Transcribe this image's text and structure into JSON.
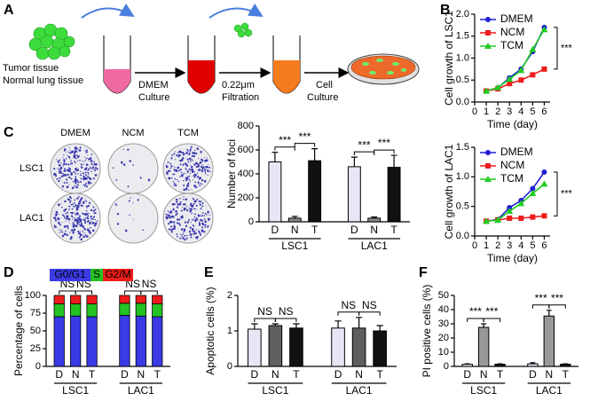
{
  "panel_labels": [
    "A",
    "B",
    "C",
    "D",
    "E",
    "F"
  ],
  "diagram": {
    "tissue": [
      "Tumor tissue",
      "Normal lung tissue"
    ],
    "step1": [
      "DMEM",
      "Culture"
    ],
    "step2": [
      "0.22μm",
      "Filtration"
    ],
    "step3": [
      "Cell",
      "Culture"
    ]
  },
  "colony": {
    "columns": [
      "DMEM",
      "NCM",
      "TCM"
    ],
    "rows": [
      "LSC1",
      "LAC1"
    ]
  },
  "chart_data": [
    {
      "type": "line",
      "y_label": "Cell growth of LSC1",
      "x_label": "Time (day)",
      "x": [
        1,
        2,
        3,
        4,
        5,
        6
      ],
      "xlim": [
        0,
        6.5
      ],
      "xticks": [
        0,
        1,
        2,
        3,
        4,
        5,
        6
      ],
      "ylim": [
        0,
        2
      ],
      "yticks": [
        {
          "value": 0,
          "label": "0.0"
        },
        0.5,
        {
          "value": 1,
          "label": "1.0"
        },
        1.5,
        {
          "value": 2,
          "label": "2.0"
        }
      ],
      "series": [
        {
          "name": "DMEM",
          "color": "#1f1fd6",
          "marker": "circle",
          "values": [
            0.25,
            0.32,
            0.55,
            0.75,
            1.15,
            1.7
          ]
        },
        {
          "name": "NCM",
          "color": "#ee1c1c",
          "marker": "square",
          "values": [
            0.25,
            0.3,
            0.42,
            0.5,
            0.62,
            0.75
          ]
        },
        {
          "name": "TCM",
          "color": "#22cc22",
          "marker": "triangle",
          "values": [
            0.25,
            0.33,
            0.52,
            0.72,
            1.2,
            1.65
          ]
        }
      ],
      "annotations": [
        "***"
      ]
    },
    {
      "type": "line",
      "y_label": "Cell growth of LAC1",
      "x_label": "Time (day)",
      "x": [
        1,
        2,
        3,
        4,
        5,
        6
      ],
      "xlim": [
        0,
        6.5
      ],
      "xticks": [
        0,
        1,
        2,
        3,
        4,
        5,
        6
      ],
      "ylim": [
        0,
        1.5
      ],
      "yticks": [
        {
          "value": 0,
          "label": "0.0"
        },
        0.5,
        {
          "value": 1,
          "label": "1.0"
        },
        1.5
      ],
      "series": [
        {
          "name": "DMEM",
          "color": "#1f1fd6",
          "marker": "circle",
          "values": [
            0.25,
            0.28,
            0.48,
            0.6,
            0.8,
            1.08
          ]
        },
        {
          "name": "NCM",
          "color": "#ee1c1c",
          "marker": "square",
          "values": [
            0.25,
            0.27,
            0.3,
            0.3,
            0.32,
            0.34
          ]
        },
        {
          "name": "TCM",
          "color": "#22cc22",
          "marker": "triangle",
          "values": [
            0.25,
            0.27,
            0.42,
            0.55,
            0.72,
            0.88
          ]
        }
      ],
      "annotations": [
        "***"
      ]
    },
    {
      "type": "bar",
      "y_label": "Number of foci",
      "ylim": [
        0,
        800
      ],
      "yticks": [
        0,
        200,
        400,
        600,
        800
      ],
      "categories": [
        "D",
        "N",
        "T",
        "D",
        "N",
        "T"
      ],
      "groups": [
        "LSC1",
        "LAC1"
      ],
      "values": [
        500,
        30,
        510,
        460,
        30,
        455
      ],
      "errors": [
        80,
        15,
        100,
        80,
        10,
        100
      ],
      "colors": [
        "#e6e6f7",
        "#8a8a8a",
        "#111111"
      ],
      "annotations": [
        "***",
        "***",
        "***",
        "***"
      ]
    },
    {
      "type": "stacked_bar",
      "y_label": "Percentage of cells",
      "ylim": [
        0,
        100
      ],
      "yticks": [
        0,
        25,
        50,
        75,
        100
      ],
      "categories": [
        "D",
        "N",
        "T",
        "D",
        "N",
        "T"
      ],
      "groups": [
        "LSC1",
        "LAC1"
      ],
      "series": [
        {
          "name": "G0/G1",
          "color": "#3a3ae6",
          "values": [
            70,
            71,
            70,
            72,
            71,
            70
          ]
        },
        {
          "name": "S",
          "color": "#22c322",
          "values": [
            18,
            17,
            18,
            17,
            18,
            18
          ]
        },
        {
          "name": "G2/M",
          "color": "#ee1c1c",
          "values": [
            12,
            12,
            12,
            11,
            11,
            12
          ]
        }
      ],
      "annotations": [
        "NS",
        "NS",
        "NS",
        "NS"
      ]
    },
    {
      "type": "bar",
      "y_label": "Apoptotic cells (%)",
      "ylim": [
        0,
        2
      ],
      "yticks": [
        0,
        1,
        2
      ],
      "categories": [
        "D",
        "N",
        "T",
        "D",
        "N",
        "T"
      ],
      "groups": [
        "LSC1",
        "LAC1"
      ],
      "values": [
        1.05,
        1.15,
        1.08,
        1.08,
        1.08,
        1.0
      ],
      "errors": [
        0.15,
        0.05,
        0.12,
        0.2,
        0.3,
        0.15
      ],
      "colors": [
        "#e6e6f7",
        "#5f5f5f",
        "#111111"
      ],
      "annotations": [
        "NS",
        "NS",
        "NS",
        "NS"
      ]
    },
    {
      "type": "bar",
      "y_label": "PI positive cells (%)",
      "ylim": [
        0,
        50
      ],
      "yticks": [
        0,
        10,
        20,
        30,
        40,
        50
      ],
      "categories": [
        "D",
        "N",
        "T",
        "D",
        "N",
        "T"
      ],
      "groups": [
        "LSC1",
        "LAC1"
      ],
      "values": [
        1.5,
        27.5,
        1.5,
        1.8,
        35.5,
        1.5
      ],
      "errors": [
        0.3,
        2.5,
        0.3,
        0.8,
        4,
        0.3
      ],
      "colors": [
        "#e6e6f7",
        "#999999",
        "#111111"
      ],
      "annotations": [
        "***",
        "***",
        "***",
        "***"
      ]
    }
  ]
}
